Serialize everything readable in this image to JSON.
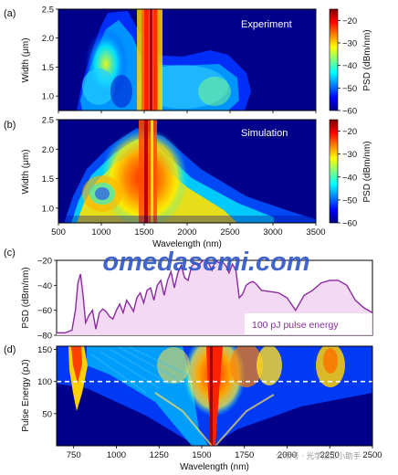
{
  "colors": {
    "jet": [
      "#00007f",
      "#0000ff",
      "#007fff",
      "#00ffff",
      "#7fff7f",
      "#ffff00",
      "#ff7f00",
      "#ff0000",
      "#7f0000"
    ],
    "pulse_line": "#8a2ba0",
    "pulse_fill": "#f3d9f3",
    "dashed_line": "#ffffff",
    "watermark": "#2f54c9"
  },
  "watermark": "omedasemi.com",
  "footer_credit": "公众号 · 光学加工小助手",
  "chart_data": [
    {
      "panel": "(a)",
      "type": "heatmap",
      "inset_label": "Experiment",
      "ylabel": "Width (μm)",
      "yticks": [
        "1.0",
        "1.5",
        "2.0",
        "2.5"
      ],
      "ylim": [
        0.75,
        2.5
      ],
      "xlim": [
        500,
        3500
      ],
      "colorbar": {
        "label": "PSD (dBm/nm)",
        "ticks": [
          "−20",
          "−30",
          "−40",
          "−50",
          "−60"
        ],
        "range": [
          -60,
          -15
        ]
      }
    },
    {
      "panel": "(b)",
      "type": "heatmap",
      "inset_label": "Simulation",
      "xlabel": "Wavelength (nm)",
      "xticks": [
        "500",
        "1000",
        "1500",
        "2000",
        "2500",
        "3000",
        "3500"
      ],
      "xlim": [
        500,
        3500
      ],
      "ylabel": "Width (μm)",
      "yticks": [
        "1.0",
        "1.5",
        "2.0",
        "2.5"
      ],
      "ylim": [
        0.75,
        2.5
      ],
      "colorbar": {
        "label": "PSD (dBm/nm)",
        "ticks": [
          "−20",
          "−30",
          "−40",
          "−50",
          "−60"
        ],
        "range": [
          -60,
          -15
        ]
      }
    },
    {
      "panel": "(c)",
      "type": "area",
      "ylabel": "PSD (dBm/nm)",
      "yticks": [
        "−20",
        "−40",
        "−60",
        "−80"
      ],
      "ylim": [
        -80,
        -20
      ],
      "xlim": [
        650,
        2500
      ],
      "legend_text": "100 pJ pulse energy",
      "series": [
        {
          "x": [
            650,
            700,
            740,
            760,
            775,
            790,
            805,
            820,
            840,
            860,
            880,
            900,
            920,
            940,
            960,
            980,
            1000,
            1020,
            1040,
            1060,
            1080,
            1100,
            1120,
            1140,
            1160,
            1180,
            1200,
            1220,
            1240,
            1260,
            1280,
            1300,
            1320,
            1340,
            1360,
            1380,
            1400,
            1420,
            1440,
            1460,
            1480,
            1500,
            1520,
            1540,
            1560,
            1580,
            1600,
            1620,
            1640,
            1660,
            1680,
            1700,
            1720,
            1740,
            1760,
            1780,
            1800,
            1820,
            1850,
            1900,
            1950,
            2000,
            2050,
            2100,
            2150,
            2200,
            2250,
            2300,
            2350,
            2400,
            2450,
            2500
          ],
          "y": [
            -78,
            -78,
            -76,
            -60,
            -38,
            -31,
            -48,
            -70,
            -64,
            -60,
            -75,
            -62,
            -59,
            -61,
            -65,
            -67,
            -60,
            -55,
            -62,
            -52,
            -56,
            -61,
            -50,
            -46,
            -54,
            -44,
            -42,
            -52,
            -40,
            -36,
            -48,
            -36,
            -29,
            -42,
            -30,
            -24,
            -34,
            -36,
            -25,
            -22,
            -24,
            -21,
            -19,
            -22,
            -28,
            -20,
            -22,
            -21,
            -24,
            -30,
            -23,
            -28,
            -50,
            -47,
            -40,
            -38,
            -37,
            -39,
            -44,
            -45,
            -46,
            -50,
            -60,
            -48,
            -44,
            -38,
            -36,
            -36,
            -40,
            -52,
            -58,
            -62
          ]
        }
      ]
    },
    {
      "panel": "(d)",
      "type": "heatmap",
      "xlabel": "Wavelength (nm)",
      "xticks": [
        "750",
        "1000",
        "1250",
        "1500",
        "1750",
        "2000",
        "2250",
        "2500"
      ],
      "xlim": [
        650,
        2500
      ],
      "ylabel": "Pulse Energy (pJ)",
      "yticks": [
        "50",
        "100",
        "150"
      ],
      "ylim": [
        0,
        155
      ],
      "reference_line_y": 100
    }
  ]
}
